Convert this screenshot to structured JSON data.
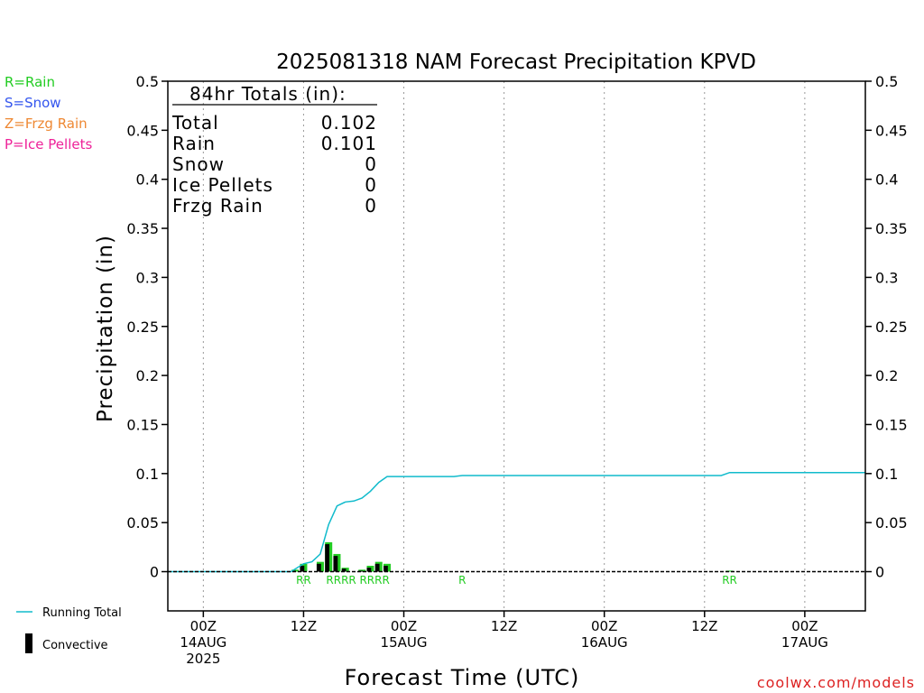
{
  "chart_data": {
    "type": "bar",
    "title": "2025081318 NAM Forecast Precipitation KPVD",
    "xlabel": "Forecast Time (UTC)",
    "ylabel": "Precipitation (in)",
    "ylim": [
      -0.04,
      0.5
    ],
    "xlim_hours": [
      -4.25,
      79.25
    ],
    "y_ticks": [
      {
        "value": 0,
        "label": "0"
      },
      {
        "value": 0.05,
        "label": "0.05"
      },
      {
        "value": 0.1,
        "label": "0.1"
      },
      {
        "value": 0.15,
        "label": "0.15"
      },
      {
        "value": 0.2,
        "label": "0.2"
      },
      {
        "value": 0.25,
        "label": "0.25"
      },
      {
        "value": 0.3,
        "label": "0.3"
      },
      {
        "value": 0.35,
        "label": "0.35"
      },
      {
        "value": 0.4,
        "label": "0.4"
      },
      {
        "value": 0.45,
        "label": "0.45"
      },
      {
        "value": 0.5,
        "label": "0.5"
      }
    ],
    "x_ticks": [
      {
        "hour": 0,
        "lines": [
          "00Z",
          "14AUG",
          "2025"
        ]
      },
      {
        "hour": 12,
        "lines": [
          "12Z"
        ]
      },
      {
        "hour": 24,
        "lines": [
          "00Z",
          "15AUG"
        ]
      },
      {
        "hour": 36,
        "lines": [
          "12Z"
        ]
      },
      {
        "hour": 48,
        "lines": [
          "00Z",
          "16AUG"
        ]
      },
      {
        "hour": 60,
        "lines": [
          "12Z"
        ]
      },
      {
        "hour": 72,
        "lines": [
          "00Z",
          "17AUG"
        ]
      }
    ],
    "grid": "vertical dotted at 00Z/12Z",
    "totals_box": {
      "header": "84hr Totals (in):",
      "rows": [
        {
          "label": "Total",
          "value": "0.102"
        },
        {
          "label": "Rain",
          "value": "0.101"
        },
        {
          "label": "Snow",
          "value": "0"
        },
        {
          "label": "Ice Pellets",
          "value": "0"
        },
        {
          "label": "Frzg Rain",
          "value": "0"
        }
      ]
    },
    "type_legend": [
      {
        "label": "R=Rain",
        "color": "#22cc22"
      },
      {
        "label": "S=Snow",
        "color": "#3355ee"
      },
      {
        "label": "Z=Frzg Rain",
        "color": "#ee8833"
      },
      {
        "label": "P=Ice Pellets",
        "color": "#ee2299"
      }
    ],
    "series_legend": [
      {
        "label": "Running Total",
        "kind": "line",
        "color": "#11bbcc"
      },
      {
        "label": "Convective",
        "kind": "bar",
        "color": "#000000"
      }
    ],
    "series": [
      {
        "name": "Running Total",
        "color": "#11bbcc",
        "points": [
          [
            -4.25,
            0
          ],
          [
            10.5,
            0
          ],
          [
            12,
            0.008
          ],
          [
            13,
            0.01
          ],
          [
            14,
            0.018
          ],
          [
            15,
            0.048
          ],
          [
            16,
            0.067
          ],
          [
            17,
            0.071
          ],
          [
            18,
            0.072
          ],
          [
            19,
            0.075
          ],
          [
            20,
            0.082
          ],
          [
            21,
            0.091
          ],
          [
            22,
            0.097
          ],
          [
            30,
            0.097
          ],
          [
            31,
            0.098
          ],
          [
            62,
            0.098
          ],
          [
            63,
            0.101
          ],
          [
            79.25,
            0.101
          ]
        ]
      }
    ],
    "precip_bars": [
      {
        "hour": 11,
        "total": 0.002,
        "convective": 0.001
      },
      {
        "hour": 12,
        "total": 0.008,
        "convective": 0.006
      },
      {
        "hour": 14,
        "total": 0.01,
        "convective": 0.008
      },
      {
        "hour": 15,
        "total": 0.03,
        "convective": 0.028
      },
      {
        "hour": 16,
        "total": 0.018,
        "convective": 0.016
      },
      {
        "hour": 17,
        "total": 0.004,
        "convective": 0.003
      },
      {
        "hour": 19,
        "total": 0.002,
        "convective": 0.001
      },
      {
        "hour": 20,
        "total": 0.006,
        "convective": 0.004
      },
      {
        "hour": 21,
        "total": 0.01,
        "convective": 0.008
      },
      {
        "hour": 22,
        "total": 0.008,
        "convective": 0.006
      },
      {
        "hour": 63,
        "total": 0.001,
        "convective": 0
      }
    ],
    "precip_type_labels": [
      {
        "hour": 12,
        "text": "RR"
      },
      {
        "hour": 16.5,
        "text": "RRRR"
      },
      {
        "hour": 20.5,
        "text": "RRRR"
      },
      {
        "hour": 31,
        "text": "R"
      },
      {
        "hour": 63,
        "text": "RR"
      }
    ],
    "credit": "coolwx.com/models"
  }
}
